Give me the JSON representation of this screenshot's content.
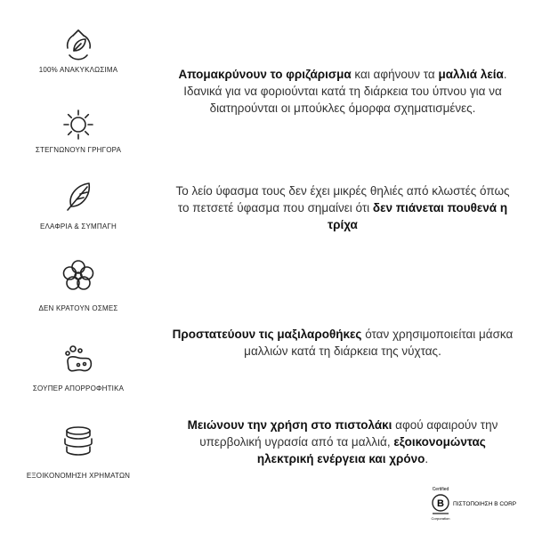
{
  "features": [
    {
      "label": "100% ΑΝΑΚΥΚΛΩΣΙΜΑ"
    },
    {
      "label": "ΣΤΕΓΝΩΝΟΥΝ ΓΡΗΓΟΡΑ"
    },
    {
      "label": "ΕΛΑΦΡΙΑ & ΣΥΜΠΑΓΗ"
    },
    {
      "label": "ΔΕΝ ΚΡΑΤΟΥΝ ΟΣΜΕΣ"
    },
    {
      "label": "ΣΟΥΠΕΡ  ΑΠΟΡΡΟΦΗΤΙΚΑ"
    },
    {
      "label": "ΕΞΟΙΚΟΝΟΜΗΣΗ ΧΡΗΜΑΤΩΝ"
    }
  ],
  "paragraphs": [
    {
      "segments": [
        {
          "text": "Απομακρύνουν το φριζάρισμα",
          "bold": true
        },
        {
          "text": " και αφήνουν τα ",
          "bold": false
        },
        {
          "text": "μαλλιά λεία",
          "bold": true
        },
        {
          "text": ". Ιδανικά για να φοριούνται κατά τη διάρκεια του ύπνου για να διατηρούνται οι μπούκλες όμορφα σχηματισμένες.",
          "bold": false
        }
      ]
    },
    {
      "segments": [
        {
          "text": "Το λείο ύφασμα τους δεν έχει μικρές θηλιές από κλωστές όπως το πετσετέ ύφασμα που σημαίνει ότι ",
          "bold": false
        },
        {
          "text": "δεν πιάνεται πουθενά η τρίχα",
          "bold": true
        }
      ]
    },
    {
      "segments": [
        {
          "text": "Προστατεύουν τις μαξιλαροθήκες",
          "bold": true
        },
        {
          "text": " όταν χρησιμοποιείται μάσκα μαλλιών κατά τη διάρκεια της νύχτας.",
          "bold": false
        }
      ]
    },
    {
      "segments": [
        {
          "text": "Μειώνουν την χρήση στο πιστολάκι",
          "bold": true
        },
        {
          "text": " αφού αφαιρούν την υπερβολική υγρασία από τα μαλλιά, ",
          "bold": false
        },
        {
          "text": "εξοικονομώντας ηλεκτρική ενέργεια και χρόνο",
          "bold": true
        },
        {
          "text": ".",
          "bold": false
        }
      ]
    }
  ],
  "badge": {
    "top": "Certified",
    "bottom": "Corporation",
    "label": "ΠΙΣΤΟΠΟΙΗΣΗ B CORP"
  }
}
